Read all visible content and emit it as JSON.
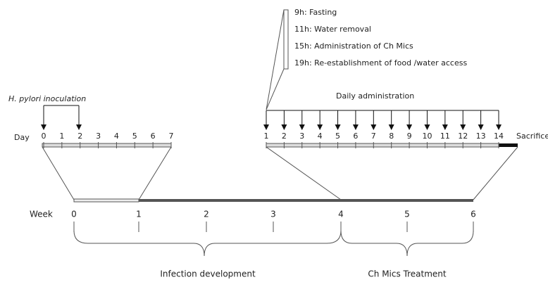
{
  "schedule": [
    "9h: Fasting",
    "11h: Water removal",
    "15h: Administration of Ch Mics",
    "19h: Re-establishment of food /water access"
  ],
  "inoculation_label": "H. pylori inoculation",
  "daily_label": "Daily administration",
  "day_label": "Day",
  "infection_days": [
    0,
    1,
    2,
    3,
    4,
    5,
    6,
    7
  ],
  "treatment_days": [
    1,
    2,
    3,
    4,
    5,
    6,
    7,
    8,
    9,
    10,
    11,
    12,
    13,
    14
  ],
  "sacrifice_label": "Sacrifice",
  "week_label": "Week",
  "weeks": [
    0,
    1,
    2,
    3,
    4,
    5,
    6
  ],
  "phases": [
    "Infection development",
    "Ch Mics Treatment"
  ]
}
